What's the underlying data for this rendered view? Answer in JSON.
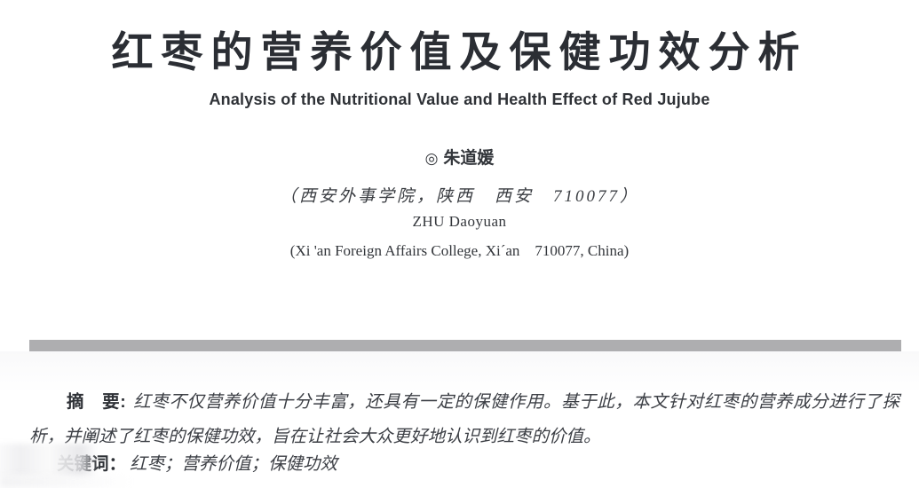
{
  "page": {
    "title_zh": "红枣的营养价值及保健功效分析",
    "title_en": "Analysis of the Nutritional Value and Health Effect of Red Jujube",
    "author_marker": "◎",
    "author_zh": "朱道媛",
    "affiliation_zh": "（西安外事学院，陕西　西安　710077）",
    "author_en": "ZHU Daoyuan",
    "affiliation_en": "(Xi 'an Foreign Affairs College, Xi´an　710077, China)",
    "abstract_label": "摘　要:",
    "abstract_text": "红枣不仅营养价值十分丰富，还具有一定的保健作用。基于此，本文针对红枣的营养成分进行了探析，并阐述了红枣的保健功效，旨在让社会大众更好地认识到红枣的价值。",
    "keywords_label": "关键词：",
    "keywords_text": "红枣；营养价值；保健功效",
    "divider_color": "#aeaeb0",
    "text_color": "#2b2e33"
  }
}
